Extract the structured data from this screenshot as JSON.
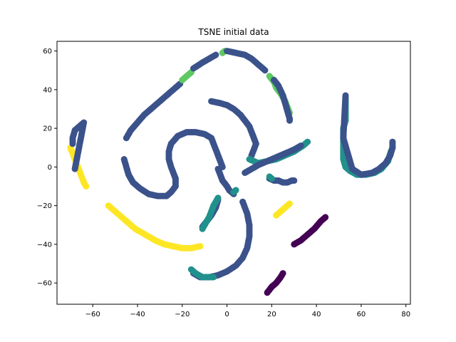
{
  "chart_data": {
    "type": "scatter",
    "title": "TSNE initial data",
    "xlabel": "",
    "ylabel": "",
    "xlim": [
      -76,
      82
    ],
    "ylim": [
      -71,
      65
    ],
    "x_ticks": [
      -60,
      -40,
      -20,
      0,
      20,
      40,
      60,
      80
    ],
    "y_ticks": [
      -60,
      -40,
      -20,
      0,
      20,
      40,
      60
    ],
    "grid": false,
    "legend": "none",
    "colors": {
      "c0": "#440154",
      "c1": "#3b528b",
      "c2": "#21918c",
      "c3": "#5ec962",
      "c4": "#fde725"
    },
    "series": [
      {
        "color": "c1",
        "points": [
          [
            -45,
            15
          ],
          [
            -43,
            19
          ],
          [
            -40,
            23
          ],
          [
            -37,
            27
          ],
          [
            -33,
            31
          ],
          [
            -29,
            35
          ],
          [
            -26,
            38
          ],
          [
            -23,
            41
          ],
          [
            -21,
            43
          ]
        ]
      },
      {
        "color": "c3",
        "points": [
          [
            -20,
            45
          ],
          [
            -18,
            47
          ],
          [
            -16,
            49
          ]
        ]
      },
      {
        "color": "c1",
        "points": [
          [
            -15,
            51
          ],
          [
            -11,
            54
          ],
          [
            -8,
            56
          ],
          [
            -5,
            58
          ]
        ]
      },
      {
        "color": "c3",
        "points": [
          [
            -2,
            59
          ],
          [
            -1,
            60
          ]
        ]
      },
      {
        "color": "c1",
        "points": [
          [
            0,
            60
          ],
          [
            4,
            59
          ],
          [
            8,
            58
          ],
          [
            11,
            56
          ],
          [
            14,
            53
          ],
          [
            17,
            50
          ]
        ]
      },
      {
        "color": "c3",
        "points": [
          [
            19,
            47
          ],
          [
            21,
            44
          ],
          [
            22,
            41
          ],
          [
            24,
            38
          ],
          [
            26,
            34
          ],
          [
            27,
            31
          ],
          [
            28,
            28
          ]
        ]
      },
      {
        "color": "c1",
        "points": [
          [
            21,
            45
          ],
          [
            23,
            42
          ],
          [
            25,
            37
          ],
          [
            26,
            33
          ],
          [
            27,
            29
          ],
          [
            28,
            25
          ],
          [
            28,
            24
          ]
        ]
      },
      {
        "color": "c4",
        "points": [
          [
            -70,
            10
          ],
          [
            -69,
            7
          ],
          [
            -68,
            4
          ],
          [
            -67,
            1
          ],
          [
            -66,
            -2
          ],
          [
            -65,
            -5
          ],
          [
            -64,
            -8
          ],
          [
            -63,
            -10
          ]
        ]
      },
      {
        "color": "c1",
        "points": [
          [
            -69,
            12
          ],
          [
            -69,
            15
          ],
          [
            -68,
            19
          ],
          [
            -66,
            21
          ],
          [
            -64,
            23
          ],
          [
            -68,
            -1
          ]
        ]
      },
      {
        "color": "c1",
        "points": [
          [
            -46,
            4
          ],
          [
            -45,
            0
          ],
          [
            -44,
            -4
          ],
          [
            -42,
            -8
          ],
          [
            -39,
            -11
          ],
          [
            -35,
            -14
          ],
          [
            -31,
            -15
          ],
          [
            -27,
            -15
          ],
          [
            -25,
            -13
          ],
          [
            -23,
            -10
          ],
          [
            -23,
            -6
          ],
          [
            -24,
            -3
          ],
          [
            -25,
            0
          ],
          [
            -26,
            4
          ],
          [
            -26,
            8
          ],
          [
            -25,
            12
          ],
          [
            -22,
            16
          ],
          [
            -18,
            18
          ],
          [
            -14,
            18
          ],
          [
            -10,
            17
          ],
          [
            -7,
            15
          ],
          [
            -6,
            12
          ],
          [
            -5,
            9
          ],
          [
            -4,
            6
          ],
          [
            -3,
            3
          ],
          [
            -2,
            0
          ]
        ]
      },
      {
        "color": "c1",
        "points": [
          [
            -7,
            34
          ],
          [
            -3,
            33
          ],
          [
            0,
            32
          ],
          [
            3,
            30
          ],
          [
            6,
            27
          ],
          [
            8,
            24
          ],
          [
            10,
            21
          ],
          [
            11,
            18
          ],
          [
            12,
            15
          ],
          [
            13,
            12
          ],
          [
            12,
            9
          ],
          [
            11,
            6
          ]
        ]
      },
      {
        "color": "c2",
        "points": [
          [
            10,
            4
          ],
          [
            14,
            2
          ],
          [
            18,
            3
          ],
          [
            22,
            4
          ],
          [
            26,
            6
          ],
          [
            30,
            8
          ],
          [
            34,
            11
          ],
          [
            36,
            13
          ]
        ]
      },
      {
        "color": "c1",
        "points": [
          [
            8,
            -3
          ],
          [
            11,
            -1
          ],
          [
            14,
            1
          ],
          [
            18,
            3
          ],
          [
            22,
            5
          ],
          [
            26,
            7
          ],
          [
            30,
            9
          ],
          [
            33,
            11
          ]
        ]
      },
      {
        "color": "c1",
        "points": [
          [
            -4,
            -1
          ],
          [
            -3,
            -4
          ],
          [
            -2,
            -7
          ],
          [
            0,
            -10
          ],
          [
            1,
            -12
          ],
          [
            3,
            -14
          ]
        ]
      },
      {
        "color": "c2",
        "points": [
          [
            3,
            -13
          ],
          [
            4,
            -12
          ]
        ]
      },
      {
        "color": "c1",
        "points": [
          [
            19,
            -6
          ],
          [
            21,
            -7
          ],
          [
            23,
            -7
          ],
          [
            25,
            -8
          ],
          [
            27,
            -8
          ],
          [
            29,
            -7
          ],
          [
            30,
            -7
          ]
        ]
      },
      {
        "color": "c2",
        "points": [
          [
            19,
            -5
          ],
          [
            20,
            -6
          ]
        ]
      },
      {
        "color": "c2",
        "points": [
          [
            53,
            36
          ],
          [
            53,
            32
          ],
          [
            53,
            28
          ],
          [
            53,
            24
          ],
          [
            52,
            20
          ],
          [
            52,
            16
          ],
          [
            52,
            12
          ],
          [
            52,
            8
          ],
          [
            52,
            4
          ],
          [
            53,
            0
          ],
          [
            55,
            -2
          ],
          [
            58,
            -4
          ],
          [
            62,
            -4
          ],
          [
            66,
            -3
          ],
          [
            69,
            -1
          ],
          [
            72,
            3
          ],
          [
            73,
            7
          ],
          [
            74,
            10
          ]
        ]
      },
      {
        "color": "c1",
        "points": [
          [
            53,
            37
          ],
          [
            52,
            15
          ],
          [
            56,
            -1
          ],
          [
            60,
            -4
          ],
          [
            65,
            -3
          ],
          [
            68,
            -1
          ],
          [
            71,
            2
          ],
          [
            73,
            6
          ],
          [
            74,
            10
          ],
          [
            74,
            13
          ]
        ]
      },
      {
        "color": "c4",
        "points": [
          [
            -53,
            -20
          ],
          [
            -50,
            -23
          ],
          [
            -47,
            -26
          ],
          [
            -44,
            -29
          ],
          [
            -41,
            -32
          ],
          [
            -38,
            -34
          ],
          [
            -35,
            -36
          ],
          [
            -32,
            -38
          ],
          [
            -28,
            -40
          ],
          [
            -24,
            -41
          ],
          [
            -20,
            -42
          ],
          [
            -16,
            -42
          ],
          [
            -12,
            -41
          ]
        ]
      },
      {
        "color": "c4",
        "points": [
          [
            22,
            -25
          ],
          [
            24,
            -23
          ],
          [
            26,
            -21
          ],
          [
            28,
            -19
          ]
        ]
      },
      {
        "color": "c1",
        "points": [
          [
            -4,
            -17
          ],
          [
            -5,
            -21
          ],
          [
            -7,
            -25
          ],
          [
            -9,
            -28
          ],
          [
            -11,
            -31
          ]
        ]
      },
      {
        "color": "c2",
        "points": [
          [
            -4,
            -16
          ],
          [
            -6,
            -20
          ],
          [
            -8,
            -26
          ],
          [
            -11,
            -32
          ]
        ]
      },
      {
        "color": "c1",
        "points": [
          [
            7,
            -18
          ],
          [
            9,
            -24
          ],
          [
            10,
            -30
          ],
          [
            10,
            -36
          ],
          [
            9,
            -42
          ],
          [
            7,
            -47
          ],
          [
            4,
            -51
          ],
          [
            0,
            -54
          ],
          [
            -4,
            -56
          ],
          [
            -8,
            -57
          ],
          [
            -12,
            -57
          ],
          [
            -15,
            -55
          ]
        ]
      },
      {
        "color": "c2",
        "points": [
          [
            -16,
            -53
          ],
          [
            -14,
            -55
          ],
          [
            -11,
            -57
          ],
          [
            -8,
            -57
          ],
          [
            -6,
            -57
          ]
        ]
      },
      {
        "color": "c0",
        "points": [
          [
            30,
            -40
          ],
          [
            33,
            -38
          ],
          [
            36,
            -35
          ],
          [
            39,
            -32
          ],
          [
            42,
            -28
          ],
          [
            44,
            -26
          ]
        ]
      },
      {
        "color": "c0",
        "points": [
          [
            18,
            -65
          ],
          [
            20,
            -62
          ],
          [
            22,
            -60
          ],
          [
            24,
            -57
          ],
          [
            25,
            -55
          ]
        ]
      }
    ]
  }
}
